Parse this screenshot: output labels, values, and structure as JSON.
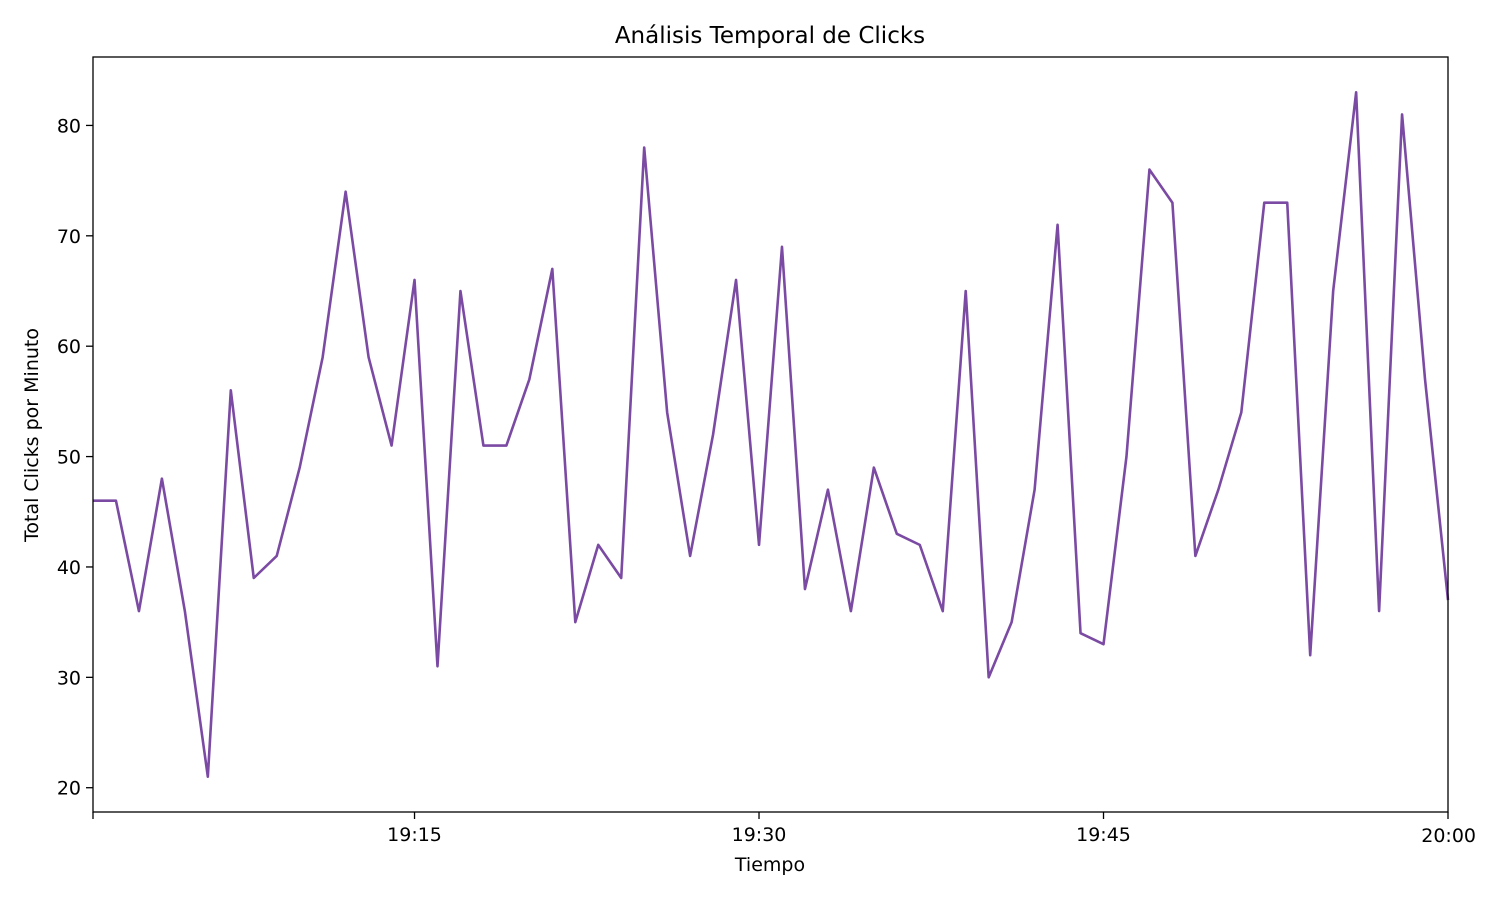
{
  "chart_data": {
    "type": "line",
    "title": "Análisis Temporal de Clicks",
    "xlabel": "Tiempo",
    "ylabel": "Total Clicks por Minuto",
    "x_start": "19:01",
    "x_step_minutes": 1,
    "xlim": [
      "19:01",
      "20:00"
    ],
    "ylim": [
      17.8,
      86.2
    ],
    "x_ticks": [
      "19:15",
      "19:30",
      "19:45",
      "20:00"
    ],
    "y_ticks": [
      20,
      30,
      40,
      50,
      60,
      70,
      80
    ],
    "grid": false,
    "line_color": "#7b4aa3",
    "series": [
      {
        "values": [
          46,
          46,
          36,
          48,
          36,
          21,
          56,
          39,
          41,
          49,
          59,
          74,
          59,
          51,
          66,
          31,
          65,
          51,
          51,
          57,
          67,
          35,
          42,
          39,
          78,
          54,
          41,
          52,
          66,
          42,
          69,
          38,
          47,
          36,
          49,
          43,
          42,
          36,
          65,
          30,
          35,
          47,
          71,
          34,
          33,
          50,
          76,
          73,
          41,
          47,
          54,
          73,
          73,
          32,
          65,
          83,
          36,
          81,
          57,
          37
        ]
      }
    ]
  }
}
